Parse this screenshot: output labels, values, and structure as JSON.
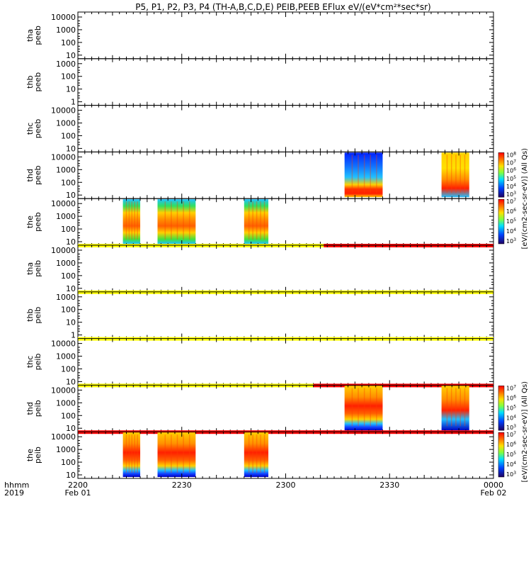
{
  "title": "P5, P1, P2, P3, P4 (TH-A,B,C,D,E) PEIB,PEEB EFlux eV/(eV*cm²*sec*sr)",
  "colors": {
    "mode_yellow": "#ffff00",
    "mode_red": "#ff0000",
    "text": "#000000"
  },
  "colorbar_units": "[eV/(cm2-sec-sr-eV)]  (All Qs)",
  "chart_data": {
    "type": "heatmap",
    "x_axis": {
      "range": [
        "2200",
        "0000"
      ],
      "tick_labels": [
        "2200",
        "2230",
        "2300",
        "2330",
        "0000"
      ],
      "tick_sublabels": [
        "Feb 01",
        "",
        "",
        "",
        "Feb 02"
      ],
      "label": "hhmm",
      "year": "2019"
    },
    "panels": [
      {
        "id": "tha_peeb",
        "label": [
          "tha",
          "peeb"
        ],
        "y_ticks": [
          "10000",
          "1000",
          "100",
          "10"
        ],
        "y_scale": "log",
        "has_data": false,
        "colorbar": null,
        "data_blocks": [],
        "mode_bar": []
      },
      {
        "id": "thb_peeb",
        "label": [
          "thb",
          "peeb"
        ],
        "y_ticks": [
          "1000",
          "100",
          "10",
          "1"
        ],
        "y_scale": "log",
        "has_data": false,
        "colorbar": null,
        "data_blocks": [],
        "mode_bar": []
      },
      {
        "id": "thc_peeb",
        "label": [
          "thc",
          "peeb"
        ],
        "y_ticks": [
          "10000",
          "1000",
          "100",
          "10"
        ],
        "y_scale": "log",
        "has_data": false,
        "colorbar": null,
        "data_blocks": [],
        "mode_bar": []
      },
      {
        "id": "thd_peeb",
        "label": [
          "thd",
          "peeb"
        ],
        "y_ticks": [
          "10000",
          "1000",
          "100",
          "10"
        ],
        "y_scale": "log",
        "has_data": true,
        "colorbar": {
          "exps": [
            "8",
            "7",
            "6",
            "5",
            "4",
            "3"
          ]
        },
        "data_blocks": [
          {
            "start": "2317",
            "end": "2328",
            "profile": "band_high"
          },
          {
            "start": "2345",
            "end": "2353",
            "profile": "warm_dip"
          }
        ],
        "mode_bar": []
      },
      {
        "id": "the_peeb",
        "label": [
          "the",
          "peeb"
        ],
        "y_ticks": [
          "10000",
          "1000",
          "100",
          "10"
        ],
        "y_scale": "log",
        "has_data": true,
        "colorbar": {
          "exps": [
            "7",
            "6",
            "5",
            "4",
            "3"
          ]
        },
        "data_blocks": [
          {
            "start": "2213",
            "end": "2218",
            "profile": "warm"
          },
          {
            "start": "2223",
            "end": "2234",
            "profile": "warm"
          },
          {
            "start": "2248",
            "end": "2255",
            "profile": "warm"
          }
        ],
        "mode_bar": [
          {
            "start": "2200",
            "end": "2311",
            "color": "#ffff00"
          },
          {
            "start": "2311",
            "end": "0000",
            "color": "#ff0000"
          }
        ]
      },
      {
        "id": "tha_peib",
        "label": [
          "tha",
          "peib"
        ],
        "y_ticks": [
          "10000",
          "1000",
          "100",
          "10"
        ],
        "y_scale": "log",
        "has_data": false,
        "colorbar": null,
        "data_blocks": [],
        "mode_bar": [
          {
            "start": "2200",
            "end": "0000",
            "color": "#ffff00"
          }
        ]
      },
      {
        "id": "thb_peib",
        "label": [
          "thb",
          "peib"
        ],
        "y_ticks": [
          "1000",
          "100",
          "10",
          "1"
        ],
        "y_scale": "log",
        "has_data": false,
        "colorbar": null,
        "data_blocks": [],
        "mode_bar": [
          {
            "start": "2200",
            "end": "0000",
            "color": "#ffff00"
          }
        ]
      },
      {
        "id": "thc_peib",
        "label": [
          "thc",
          "peib"
        ],
        "y_ticks": [
          "10000",
          "1000",
          "100",
          "10"
        ],
        "y_scale": "log",
        "has_data": false,
        "colorbar": null,
        "data_blocks": [],
        "mode_bar": [
          {
            "start": "2200",
            "end": "2308",
            "color": "#ffff00"
          },
          {
            "start": "2308",
            "end": "0000",
            "color": "#ff0000"
          }
        ]
      },
      {
        "id": "thd_peib",
        "label": [
          "thd",
          "peib"
        ],
        "y_ticks": [
          "10000",
          "1000",
          "100",
          "10"
        ],
        "y_scale": "log",
        "has_data": true,
        "colorbar": {
          "exps": [
            "7",
            "6",
            "5",
            "4",
            "3"
          ]
        },
        "data_blocks": [
          {
            "start": "2317",
            "end": "2328",
            "profile": "ion_hot"
          },
          {
            "start": "2345",
            "end": "2353",
            "profile": "ion_dip"
          }
        ],
        "mode_bar": [
          {
            "start": "2200",
            "end": "0000",
            "color": "#ff0000"
          }
        ]
      },
      {
        "id": "the_peib",
        "label": [
          "the",
          "peib"
        ],
        "y_ticks": [
          "10000",
          "1000",
          "100",
          "10"
        ],
        "y_scale": "log",
        "has_data": true,
        "colorbar": {
          "exps": [
            "7",
            "6",
            "5",
            "4",
            "3"
          ]
        },
        "data_blocks": [
          {
            "start": "2213",
            "end": "2218",
            "profile": "ion_hot"
          },
          {
            "start": "2223",
            "end": "2234",
            "profile": "ion_hot"
          },
          {
            "start": "2248",
            "end": "2255",
            "profile": "ion_hot"
          }
        ],
        "mode_bar": []
      }
    ]
  }
}
